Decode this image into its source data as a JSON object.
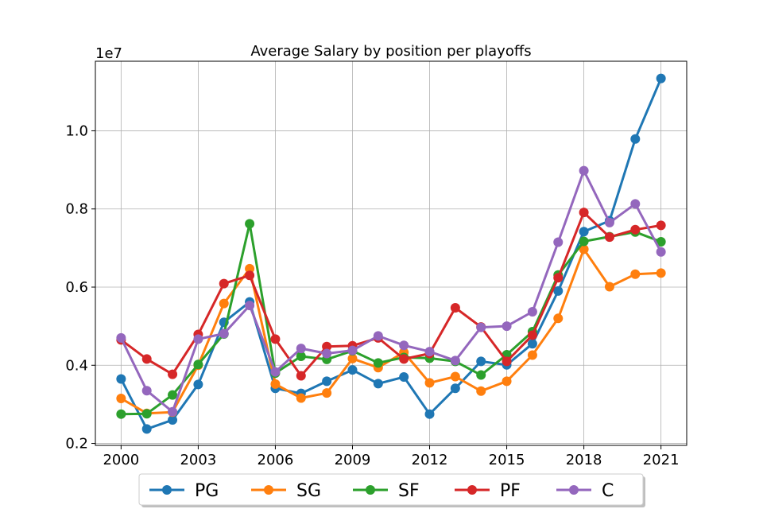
{
  "chart_data": {
    "type": "line",
    "title": "Average Salary by position per playoffs",
    "xlabel": "",
    "ylabel": "",
    "y_offset_label": "1e7",
    "x": [
      2000,
      2001,
      2002,
      2003,
      2004,
      2005,
      2006,
      2007,
      2008,
      2009,
      2010,
      2011,
      2012,
      2013,
      2014,
      2015,
      2016,
      2017,
      2018,
      2019,
      2020,
      2021
    ],
    "x_ticks": [
      2000,
      2003,
      2006,
      2009,
      2012,
      2015,
      2018,
      2021
    ],
    "x_tick_labels": [
      "2000",
      "2003",
      "2006",
      "2009",
      "2012",
      "2015",
      "2018",
      "2021"
    ],
    "y_ticks": [
      0.2,
      0.4,
      0.6,
      0.8,
      1.0
    ],
    "y_tick_labels": [
      "0.2",
      "0.4",
      "0.6",
      "0.8",
      "1.0"
    ],
    "xlim": [
      1999.0,
      2022.0
    ],
    "ylim": [
      0.195,
      1.178
    ],
    "grid": true,
    "legend_position": "bottom-center",
    "series": [
      {
        "name": "PG",
        "color": "#1f77b4",
        "values": [
          0.365,
          0.237,
          0.26,
          0.351,
          0.51,
          0.562,
          0.341,
          0.328,
          0.359,
          0.388,
          0.353,
          0.37,
          0.275,
          0.341,
          0.41,
          0.401,
          0.455,
          0.59,
          0.742,
          0.77,
          0.979,
          1.134
        ]
      },
      {
        "name": "SG",
        "color": "#ff7f0e",
        "values": [
          0.315,
          0.277,
          0.28,
          0.4,
          0.558,
          0.647,
          0.352,
          0.316,
          0.329,
          0.417,
          0.394,
          0.433,
          0.355,
          0.371,
          0.334,
          0.359,
          0.426,
          0.52,
          0.697,
          0.601,
          0.633,
          0.636
        ]
      },
      {
        "name": "SF",
        "color": "#2ca02c",
        "values": [
          0.275,
          0.276,
          0.324,
          0.402,
          0.48,
          0.762,
          0.38,
          0.423,
          0.415,
          0.437,
          0.406,
          0.42,
          0.418,
          0.41,
          0.375,
          0.427,
          0.486,
          0.631,
          0.717,
          0.729,
          0.741,
          0.716
        ]
      },
      {
        "name": "PF",
        "color": "#d62728",
        "values": [
          0.465,
          0.416,
          0.377,
          0.479,
          0.609,
          0.63,
          0.467,
          0.373,
          0.448,
          0.45,
          0.47,
          0.416,
          0.43,
          0.547,
          0.498,
          0.41,
          0.477,
          0.624,
          0.791,
          0.728,
          0.747,
          0.758
        ]
      },
      {
        "name": "C",
        "color": "#9467bd",
        "values": [
          0.47,
          0.335,
          0.281,
          0.467,
          0.481,
          0.553,
          0.383,
          0.443,
          0.43,
          0.438,
          0.475,
          0.451,
          0.435,
          0.412,
          0.497,
          0.5,
          0.537,
          0.715,
          0.898,
          0.765,
          0.813,
          0.69
        ]
      }
    ]
  }
}
